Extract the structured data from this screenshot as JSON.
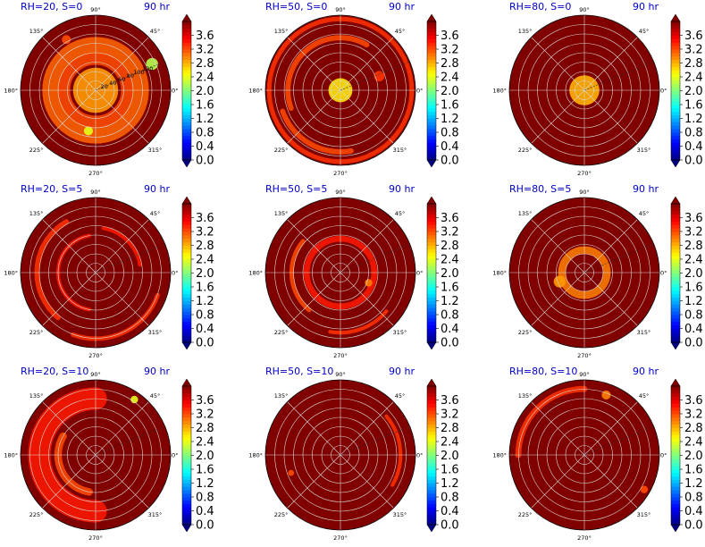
{
  "chart_data": {
    "type": "heatmap",
    "subtype": "polar",
    "time_label": "90 hr",
    "theta_ticks": [
      "0°",
      "45°",
      "90°",
      "135°",
      "180°",
      "225°",
      "270°",
      "315°"
    ],
    "radial_ticks": [
      "20",
      "40",
      "60",
      "80",
      "100",
      "120"
    ],
    "radial_rings": 8,
    "colormap": "jet",
    "colorbar": {
      "vmin": 0.0,
      "vmax": 4.0,
      "extend": "both",
      "tick_labels": [
        "0.0",
        "0.4",
        "0.8",
        "1.2",
        "1.6",
        "2.0",
        "2.4",
        "2.8",
        "3.2",
        "3.6"
      ]
    },
    "background_value": 4.0,
    "panels": [
      {
        "title": "RH=20, S=0",
        "rh": 20,
        "s": 0,
        "radial_labels_visible": true,
        "features": [
          {
            "kind": "ring",
            "r": 0.6,
            "w": 0.22,
            "v": 3.1
          },
          {
            "kind": "ring",
            "r": 0.42,
            "w": 0.16,
            "v": 3.2
          },
          {
            "kind": "blob",
            "th": 0,
            "r": 0.0,
            "s": 0.3,
            "v": 2.9
          },
          {
            "kind": "blob",
            "th": 25,
            "r": 0.83,
            "s": 0.08,
            "v": 2.2
          },
          {
            "kind": "blob",
            "th": 260,
            "r": 0.55,
            "s": 0.06,
            "v": 2.4
          },
          {
            "kind": "blob",
            "th": 120,
            "r": 0.78,
            "s": 0.06,
            "v": 3.2
          }
        ]
      },
      {
        "title": "RH=50, S=0",
        "rh": 50,
        "s": 0,
        "radial_labels_visible": false,
        "features": [
          {
            "kind": "blob",
            "th": 0,
            "r": 0.0,
            "s": 0.16,
            "v": 2.6
          },
          {
            "kind": "ring",
            "r": 0.95,
            "w": 0.06,
            "v": 3.3
          },
          {
            "kind": "arc",
            "r": 0.7,
            "w": 0.07,
            "a0": 60,
            "a1": 200,
            "v": 3.2
          },
          {
            "kind": "arc",
            "r": 0.82,
            "w": 0.07,
            "a0": 200,
            "a1": 280,
            "v": 3.2
          },
          {
            "kind": "blob",
            "th": 20,
            "r": 0.55,
            "s": 0.07,
            "v": 3.3
          }
        ]
      },
      {
        "title": "RH=80, S=0",
        "rh": 80,
        "s": 0,
        "radial_labels_visible": false,
        "features": [
          {
            "kind": "blob",
            "th": 0,
            "r": 0.0,
            "s": 0.2,
            "v": 2.8
          }
        ]
      },
      {
        "title": "RH=20, S=5",
        "rh": 20,
        "s": 5,
        "radial_labels_visible": false,
        "features": [
          {
            "kind": "arc",
            "r": 0.78,
            "w": 0.07,
            "a0": 120,
            "a1": 230,
            "v": 3.3
          },
          {
            "kind": "arc",
            "r": 0.5,
            "w": 0.05,
            "a0": 100,
            "a1": 260,
            "v": 3.4
          },
          {
            "kind": "arc",
            "r": 0.88,
            "w": 0.06,
            "a0": 250,
            "a1": 340,
            "v": 3.3
          },
          {
            "kind": "arc",
            "r": 0.6,
            "w": 0.05,
            "a0": 10,
            "a1": 80,
            "v": 3.4
          }
        ]
      },
      {
        "title": "RH=50, S=5",
        "rh": 50,
        "s": 5,
        "radial_labels_visible": false,
        "features": [
          {
            "kind": "ring",
            "r": 0.45,
            "w": 0.08,
            "v": 3.4
          },
          {
            "kind": "arc",
            "r": 0.65,
            "w": 0.06,
            "a0": 140,
            "a1": 230,
            "v": 3.2
          },
          {
            "kind": "arc",
            "r": 0.8,
            "w": 0.05,
            "a0": 260,
            "a1": 320,
            "v": 3.3
          },
          {
            "kind": "blob",
            "th": 340,
            "r": 0.4,
            "s": 0.05,
            "v": 3.0
          }
        ]
      },
      {
        "title": "RH=80, S=5",
        "rh": 80,
        "s": 5,
        "radial_labels_visible": false,
        "features": [
          {
            "kind": "ring",
            "r": 0.3,
            "w": 0.1,
            "v": 3.0
          },
          {
            "kind": "blob",
            "th": 200,
            "r": 0.35,
            "s": 0.08,
            "v": 2.9
          }
        ]
      },
      {
        "title": "RH=20, S=10",
        "rh": 20,
        "s": 10,
        "radial_labels_visible": false,
        "features": [
          {
            "kind": "arc",
            "r": 0.75,
            "w": 0.3,
            "a0": 90,
            "a1": 270,
            "v": 3.4
          },
          {
            "kind": "arc",
            "r": 0.5,
            "w": 0.1,
            "a0": 150,
            "a1": 260,
            "v": 3.2
          },
          {
            "kind": "blob",
            "th": 55,
            "r": 0.9,
            "s": 0.05,
            "v": 2.4
          }
        ]
      },
      {
        "title": "RH=50, S=10",
        "rh": 50,
        "s": 10,
        "radial_labels_visible": false,
        "features": [
          {
            "kind": "arc",
            "r": 0.8,
            "w": 0.05,
            "a0": 330,
            "a1": 40,
            "v": 3.3
          },
          {
            "kind": "blob",
            "th": 200,
            "r": 0.7,
            "s": 0.04,
            "v": 3.2
          }
        ]
      },
      {
        "title": "RH=80, S=10",
        "rh": 80,
        "s": 10,
        "radial_labels_visible": false,
        "features": [
          {
            "kind": "arc",
            "r": 0.88,
            "w": 0.08,
            "a0": 90,
            "a1": 180,
            "v": 3.3
          },
          {
            "kind": "blob",
            "th": 70,
            "r": 0.85,
            "s": 0.06,
            "v": 3.0
          },
          {
            "kind": "blob",
            "th": 330,
            "r": 0.92,
            "s": 0.05,
            "v": 3.2
          }
        ]
      }
    ]
  }
}
